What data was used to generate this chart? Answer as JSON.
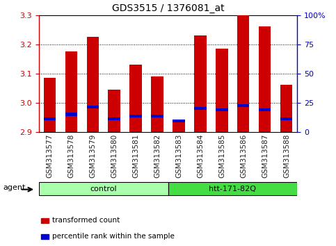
{
  "title": "GDS3515 / 1376081_at",
  "samples": [
    "GSM313577",
    "GSM313578",
    "GSM313579",
    "GSM313580",
    "GSM313581",
    "GSM313582",
    "GSM313583",
    "GSM313584",
    "GSM313585",
    "GSM313586",
    "GSM313587",
    "GSM313588"
  ],
  "red_values": [
    3.085,
    3.175,
    3.225,
    3.045,
    3.13,
    3.09,
    2.935,
    3.23,
    3.185,
    3.3,
    3.26,
    3.06
  ],
  "blue_values": [
    2.945,
    2.96,
    2.985,
    2.945,
    2.955,
    2.955,
    2.937,
    2.98,
    2.975,
    2.99,
    2.975,
    2.945
  ],
  "ymin": 2.9,
  "ymax": 3.3,
  "yticks_left": [
    2.9,
    3.0,
    3.1,
    3.2,
    3.3
  ],
  "yticks_right": [
    0,
    25,
    50,
    75,
    100
  ],
  "bar_color": "#cc0000",
  "blue_color": "#0000cc",
  "bar_width": 0.55,
  "groups": [
    {
      "label": "control",
      "start": 0,
      "end": 5,
      "color": "#aaffaa"
    },
    {
      "label": "htt-171-82Q",
      "start": 6,
      "end": 11,
      "color": "#44dd44"
    }
  ],
  "agent_label": "agent",
  "legend_items": [
    {
      "color": "#cc0000",
      "label": "transformed count"
    },
    {
      "color": "#0000cc",
      "label": "percentile rank within the sample"
    }
  ],
  "left_axis_color": "#cc0000",
  "right_axis_color": "#0000bb",
  "background_color": "#ffffff",
  "plot_bg_color": "#ffffff",
  "border_color": "#000000",
  "tick_fontsize": 8,
  "label_fontsize": 7.5,
  "title_fontsize": 10
}
